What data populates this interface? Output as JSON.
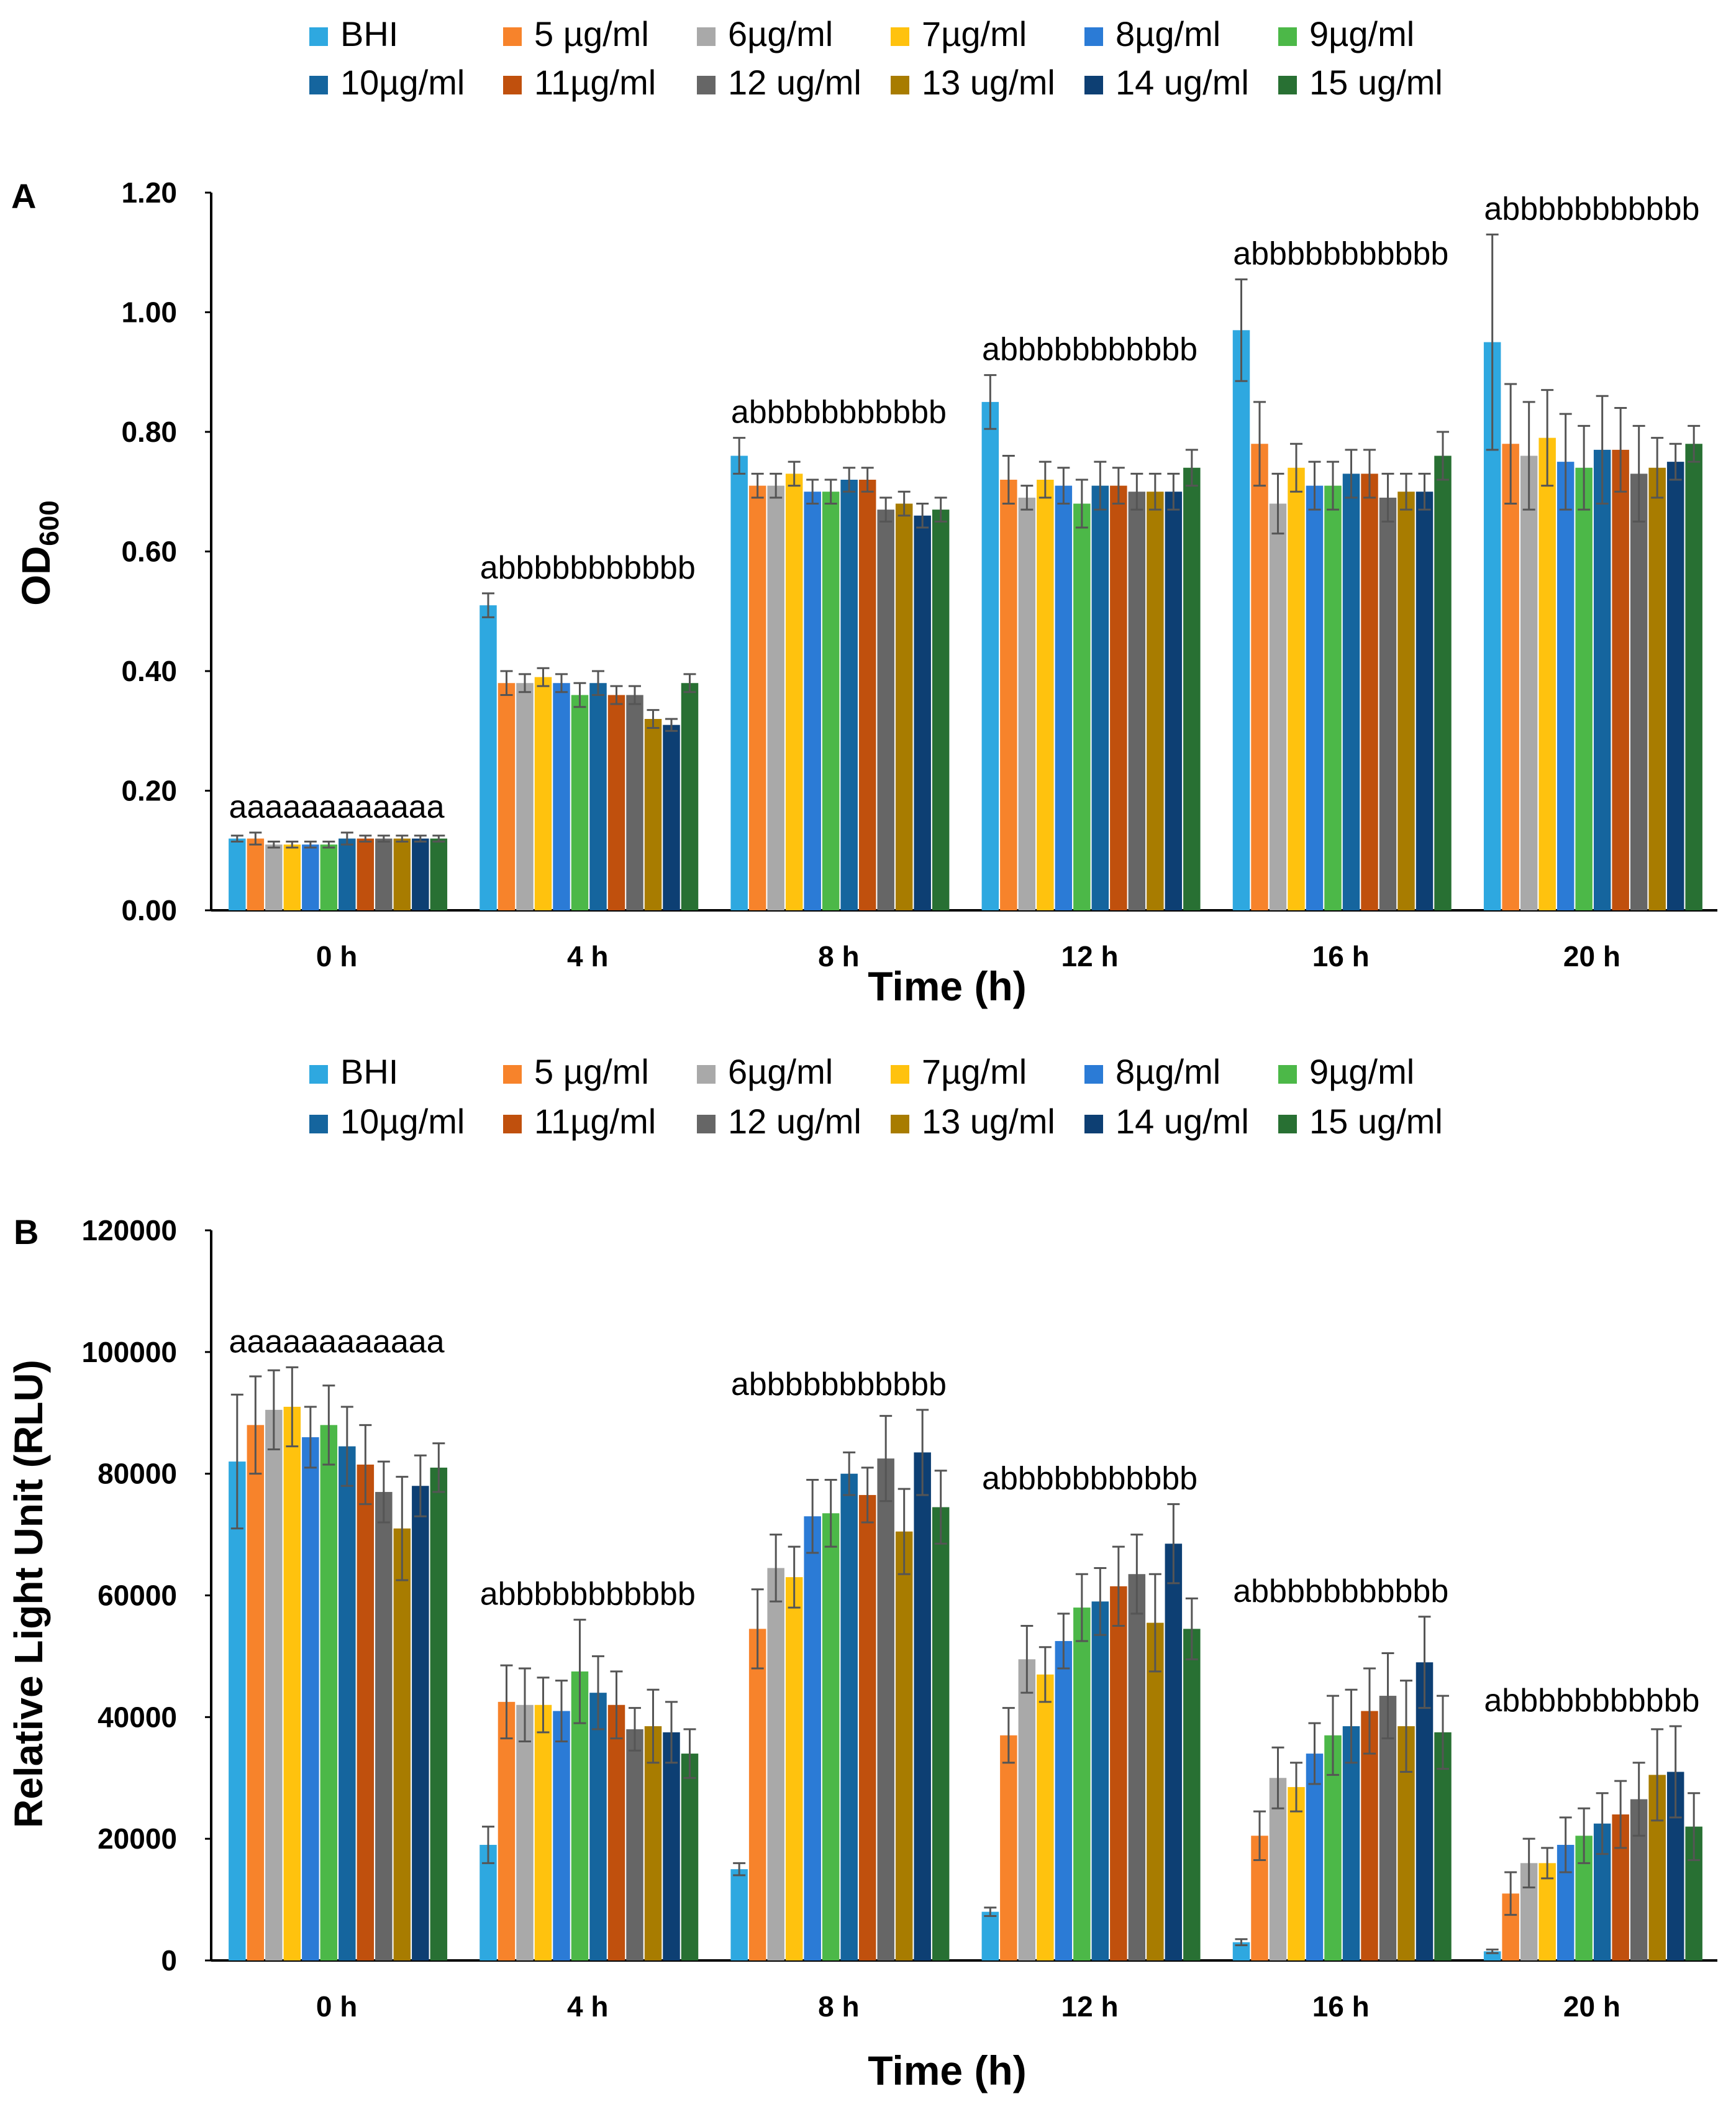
{
  "colors": [
    "#2EA8E0",
    "#F7832B",
    "#A9A9A9",
    "#FFC20E",
    "#2B7BD6",
    "#4CB848",
    "#15659E",
    "#C0500D",
    "#666666",
    "#A87C00",
    "#0D3F73",
    "#287033"
  ],
  "err_color": "#555555",
  "chart_data": [
    {
      "type": "bar",
      "panel_label": "A",
      "title": "",
      "categories": [
        "0 h",
        "4 h",
        "8 h",
        "12 h",
        "16 h",
        "20 h"
      ],
      "xlabel": "Time (h)",
      "ylabel_main": "OD",
      "ylabel_sub": "600",
      "ylim": [
        0,
        1.2
      ],
      "yticks": [
        "0.00",
        "0.20",
        "0.40",
        "0.60",
        "0.80",
        "1.00",
        "1.20"
      ],
      "significance": [
        "aaaaaaaaaaaa",
        "abbbbbbbbbbb",
        "abbbbbbbbbbb",
        "abbbbbbbbbbb",
        "abbbbbbbbbbb",
        "abbbbbbbbbbb"
      ],
      "legend": [
        "BHI",
        "5 µg/ml",
        "6µg/ml",
        "7µg/ml",
        "8µg/ml",
        "9µg/ml",
        "10µg/ml",
        "11µg/ml",
        "12 ug/ml",
        "13 ug/ml",
        "14 ug/ml",
        "15 ug/ml"
      ],
      "series": [
        {
          "name": "BHI",
          "values": [
            0.12,
            0.51,
            0.76,
            0.85,
            0.97,
            0.95
          ],
          "errors": [
            0.005,
            0.02,
            0.03,
            0.045,
            0.085,
            0.18
          ]
        },
        {
          "name": "5 µg/ml",
          "values": [
            0.12,
            0.38,
            0.71,
            0.72,
            0.78,
            0.78
          ],
          "errors": [
            0.01,
            0.02,
            0.02,
            0.04,
            0.07,
            0.1
          ]
        },
        {
          "name": "6µg/ml",
          "values": [
            0.11,
            0.38,
            0.71,
            0.69,
            0.68,
            0.76
          ],
          "errors": [
            0.005,
            0.015,
            0.02,
            0.02,
            0.05,
            0.09
          ]
        },
        {
          "name": "7µg/ml",
          "values": [
            0.11,
            0.39,
            0.73,
            0.72,
            0.74,
            0.79
          ],
          "errors": [
            0.005,
            0.015,
            0.02,
            0.03,
            0.04,
            0.08
          ]
        },
        {
          "name": "8µg/ml",
          "values": [
            0.11,
            0.38,
            0.7,
            0.71,
            0.71,
            0.75
          ],
          "errors": [
            0.005,
            0.015,
            0.02,
            0.03,
            0.04,
            0.08
          ]
        },
        {
          "name": "9µg/ml",
          "values": [
            0.11,
            0.36,
            0.7,
            0.68,
            0.71,
            0.74
          ],
          "errors": [
            0.005,
            0.02,
            0.02,
            0.04,
            0.04,
            0.07
          ]
        },
        {
          "name": "10µg/ml",
          "values": [
            0.12,
            0.38,
            0.72,
            0.71,
            0.73,
            0.77
          ],
          "errors": [
            0.01,
            0.02,
            0.02,
            0.04,
            0.04,
            0.09
          ]
        },
        {
          "name": "11µg/ml",
          "values": [
            0.12,
            0.36,
            0.72,
            0.71,
            0.73,
            0.77
          ],
          "errors": [
            0.005,
            0.015,
            0.02,
            0.03,
            0.04,
            0.07
          ]
        },
        {
          "name": "12 ug/ml",
          "values": [
            0.12,
            0.36,
            0.67,
            0.7,
            0.69,
            0.73
          ],
          "errors": [
            0.005,
            0.015,
            0.02,
            0.03,
            0.04,
            0.08
          ]
        },
        {
          "name": "13 ug/ml",
          "values": [
            0.12,
            0.32,
            0.68,
            0.7,
            0.7,
            0.74
          ],
          "errors": [
            0.005,
            0.015,
            0.02,
            0.03,
            0.03,
            0.05
          ]
        },
        {
          "name": "14 ug/ml",
          "values": [
            0.12,
            0.31,
            0.66,
            0.7,
            0.7,
            0.75
          ],
          "errors": [
            0.005,
            0.01,
            0.02,
            0.03,
            0.03,
            0.03
          ]
        },
        {
          "name": "15 ug/ml",
          "values": [
            0.12,
            0.38,
            0.67,
            0.74,
            0.76,
            0.78
          ],
          "errors": [
            0.005,
            0.015,
            0.02,
            0.03,
            0.04,
            0.03
          ]
        }
      ]
    },
    {
      "type": "bar",
      "panel_label": "B",
      "title": "",
      "categories": [
        "0 h",
        "4 h",
        "8 h",
        "12 h",
        "16 h",
        "20 h"
      ],
      "xlabel": "Time (h)",
      "ylabel_main": "Relative Light Unit (RLU)",
      "ylabel_sub": "",
      "ylim": [
        0,
        120000
      ],
      "yticks": [
        "0",
        "20000",
        "40000",
        "60000",
        "80000",
        "100000",
        "120000"
      ],
      "significance": [
        "aaaaaaaaaaaa",
        "abbbbbbbbbbb",
        "abbbbbbbbbbb",
        "abbbbbbbbbbb",
        "abbbbbbbbbbb",
        "abbbbbbbbbbb"
      ],
      "legend": [
        "BHI",
        "5 µg/ml",
        "6µg/ml",
        "7µg/ml",
        "8µg/ml",
        "9µg/ml",
        "10µg/ml",
        "11µg/ml",
        "12 ug/ml",
        "13 ug/ml",
        "14 ug/ml",
        "15 ug/ml"
      ],
      "series": [
        {
          "name": "BHI",
          "values": [
            82000,
            19000,
            15000,
            8000,
            3000,
            1500
          ],
          "errors": [
            11000,
            3000,
            1000,
            700,
            500,
            300
          ]
        },
        {
          "name": "5 µg/ml",
          "values": [
            88000,
            42500,
            54500,
            37000,
            20500,
            11000
          ],
          "errors": [
            8000,
            6000,
            6500,
            4500,
            4000,
            3500
          ]
        },
        {
          "name": "6µg/ml",
          "values": [
            90500,
            42000,
            64500,
            49500,
            30000,
            16000
          ],
          "errors": [
            6500,
            6000,
            5500,
            5500,
            5000,
            4000
          ]
        },
        {
          "name": "7µg/ml",
          "values": [
            91000,
            42000,
            63000,
            47000,
            28500,
            16000
          ],
          "errors": [
            6500,
            4500,
            5000,
            4500,
            4000,
            2500
          ]
        },
        {
          "name": "8µg/ml",
          "values": [
            86000,
            41000,
            73000,
            52500,
            34000,
            19000
          ],
          "errors": [
            5000,
            5000,
            6000,
            4500,
            5000,
            4500
          ]
        },
        {
          "name": "9µg/ml",
          "values": [
            88000,
            47500,
            73500,
            58000,
            37000,
            20500
          ],
          "errors": [
            6500,
            8500,
            5500,
            5500,
            6500,
            4500
          ]
        },
        {
          "name": "10µg/ml",
          "values": [
            84500,
            44000,
            80000,
            59000,
            38500,
            22500
          ],
          "errors": [
            6500,
            6000,
            3500,
            5500,
            6000,
            5000
          ]
        },
        {
          "name": "11µg/ml",
          "values": [
            81500,
            42000,
            76500,
            61500,
            41000,
            24000
          ],
          "errors": [
            6500,
            5500,
            4500,
            6500,
            7000,
            5500
          ]
        },
        {
          "name": "12 ug/ml",
          "values": [
            77000,
            38000,
            82500,
            63500,
            43500,
            26500
          ],
          "errors": [
            5000,
            3500,
            7000,
            6500,
            7000,
            6000
          ]
        },
        {
          "name": "13 ug/ml",
          "values": [
            71000,
            38500,
            70500,
            55500,
            38500,
            30500
          ],
          "errors": [
            8500,
            6000,
            7000,
            8000,
            7500,
            7500
          ]
        },
        {
          "name": "14 ug/ml",
          "values": [
            78000,
            37500,
            83500,
            68500,
            49000,
            31000
          ],
          "errors": [
            5000,
            5000,
            7000,
            6500,
            7500,
            7500
          ]
        },
        {
          "name": "15 ug/ml",
          "values": [
            81000,
            34000,
            74500,
            54500,
            37500,
            22000
          ],
          "errors": [
            4000,
            4000,
            6000,
            5000,
            6000,
            5500
          ]
        }
      ]
    }
  ]
}
